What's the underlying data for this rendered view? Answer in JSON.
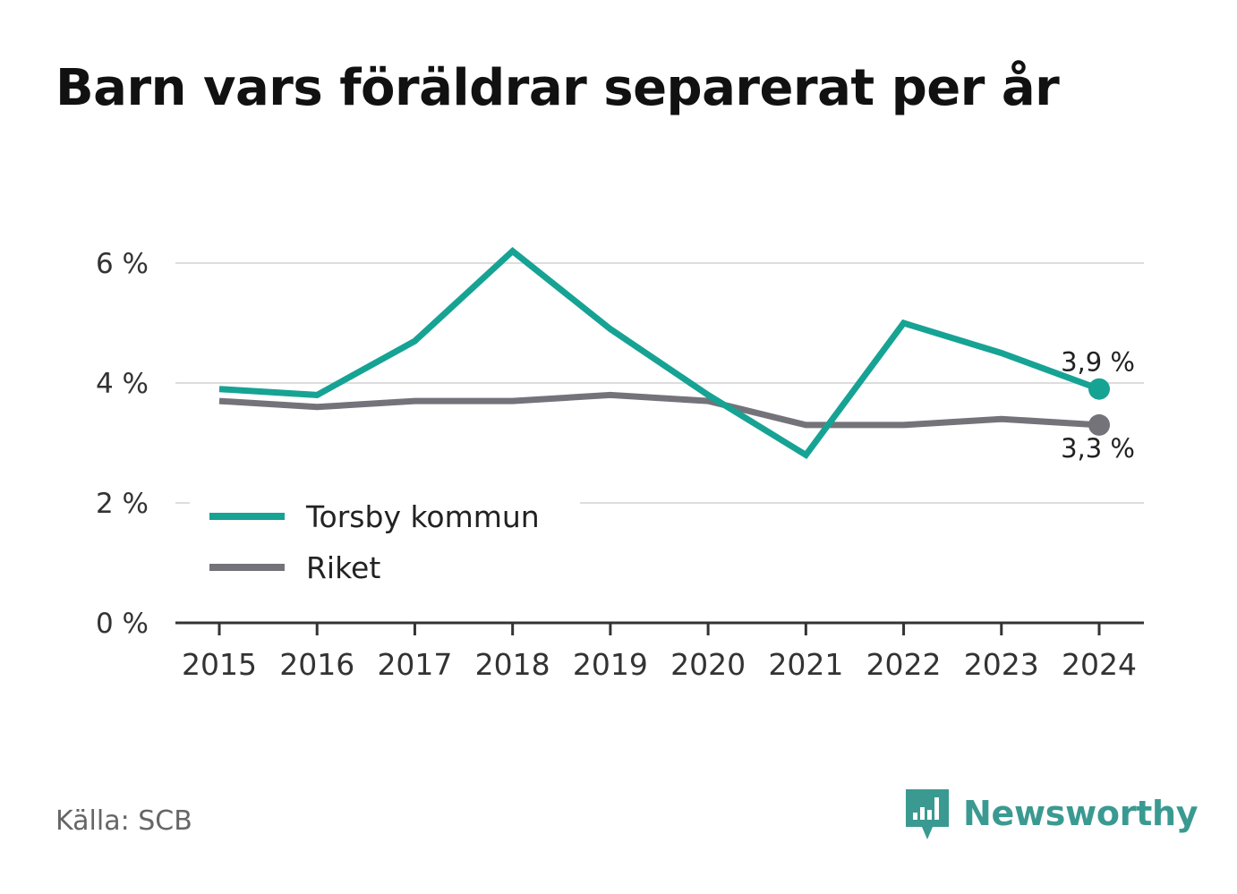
{
  "title": "Barn vars föräldrar separerat per år",
  "source": "Källa: SCB",
  "brand": "Newsworthy",
  "colors": {
    "torsby": "#16a394",
    "riket": "#74737a",
    "grid": "#dddddd",
    "axis": "#333333"
  },
  "chart_data": {
    "type": "line",
    "title": "Barn vars föräldrar separerat per år",
    "x": [
      "2015",
      "2016",
      "2017",
      "2018",
      "2019",
      "2020",
      "2021",
      "2022",
      "2023",
      "2024"
    ],
    "series": [
      {
        "name": "Torsby kommun",
        "values": [
          3.9,
          3.8,
          4.7,
          6.2,
          4.9,
          3.8,
          2.8,
          5.0,
          4.5,
          3.9
        ]
      },
      {
        "name": "Riket",
        "values": [
          3.7,
          3.6,
          3.7,
          3.7,
          3.8,
          3.7,
          3.3,
          3.3,
          3.4,
          3.3
        ]
      }
    ],
    "yticks": [
      0,
      2,
      4,
      6
    ],
    "ytick_labels": [
      "0 %",
      "2 %",
      "4 %",
      "6 %"
    ],
    "ylim": [
      0,
      6
    ],
    "end_labels": [
      "3,9 %",
      "3,3 %"
    ],
    "legend": "bottom-left",
    "grid": true
  }
}
